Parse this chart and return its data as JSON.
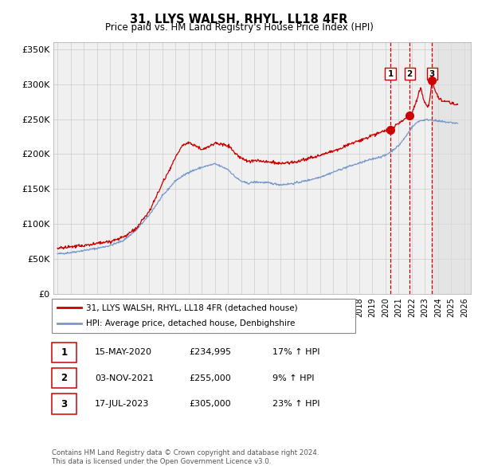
{
  "title": "31, LLYS WALSH, RHYL, LL18 4FR",
  "subtitle": "Price paid vs. HM Land Registry's House Price Index (HPI)",
  "legend_label_red": "31, LLYS WALSH, RHYL, LL18 4FR (detached house)",
  "legend_label_blue": "HPI: Average price, detached house, Denbighshire",
  "footer1": "Contains HM Land Registry data © Crown copyright and database right 2024.",
  "footer2": "This data is licensed under the Open Government Licence v3.0.",
  "transactions": [
    {
      "num": 1,
      "date": "15-MAY-2020",
      "price": "£234,995",
      "change": "17% ↑ HPI",
      "x_year": 2020.37
    },
    {
      "num": 2,
      "date": "03-NOV-2021",
      "price": "£255,000",
      "change": "9% ↑ HPI",
      "x_year": 2021.84
    },
    {
      "num": 3,
      "date": "17-JUL-2023",
      "price": "£305,000",
      "change": "23% ↑ HPI",
      "x_year": 2023.54
    }
  ],
  "transaction_values": [
    234995,
    255000,
    305000
  ],
  "red_color": "#cc0000",
  "blue_color": "#7799cc",
  "marker_color": "#cc0000",
  "vline_color": "#cc0000",
  "shade_color": "#dddddd",
  "grid_color": "#cccccc",
  "bg_color": "#ffffff",
  "plot_bg_color": "#f0f0f0",
  "ylim": [
    0,
    360000
  ],
  "yticks": [
    0,
    50000,
    100000,
    150000,
    200000,
    250000,
    300000,
    350000
  ],
  "xlim_start": 1994.7,
  "xlim_end": 2026.5,
  "xticks": [
    1995,
    1996,
    1997,
    1998,
    1999,
    2000,
    2001,
    2002,
    2003,
    2004,
    2005,
    2006,
    2007,
    2008,
    2009,
    2010,
    2011,
    2012,
    2013,
    2014,
    2015,
    2016,
    2017,
    2018,
    2019,
    2020,
    2021,
    2022,
    2023,
    2024,
    2025,
    2026
  ],
  "hpi_anchors": [
    [
      1995.0,
      57000
    ],
    [
      1996.0,
      59000
    ],
    [
      1997.0,
      62000
    ],
    [
      1998.0,
      65000
    ],
    [
      1999.0,
      69000
    ],
    [
      2000.0,
      76000
    ],
    [
      2001.0,
      91000
    ],
    [
      2002.0,
      113000
    ],
    [
      2003.0,
      140000
    ],
    [
      2004.0,
      162000
    ],
    [
      2005.0,
      174000
    ],
    [
      2006.0,
      181000
    ],
    [
      2007.0,
      186000
    ],
    [
      2008.0,
      178000
    ],
    [
      2008.5,
      168000
    ],
    [
      2009.0,
      161000
    ],
    [
      2009.5,
      158000
    ],
    [
      2010.0,
      160000
    ],
    [
      2011.0,
      159000
    ],
    [
      2012.0,
      156000
    ],
    [
      2013.0,
      158000
    ],
    [
      2014.0,
      162000
    ],
    [
      2015.0,
      167000
    ],
    [
      2016.0,
      174000
    ],
    [
      2017.0,
      181000
    ],
    [
      2018.0,
      187000
    ],
    [
      2019.0,
      193000
    ],
    [
      2020.0,
      198000
    ],
    [
      2020.5,
      205000
    ],
    [
      2021.0,
      212000
    ],
    [
      2021.5,
      224000
    ],
    [
      2022.0,
      238000
    ],
    [
      2022.5,
      247000
    ],
    [
      2023.0,
      249000
    ],
    [
      2023.5,
      249000
    ],
    [
      2024.0,
      247000
    ],
    [
      2024.5,
      246000
    ],
    [
      2025.5,
      244000
    ]
  ],
  "red_anchors": [
    [
      1995.0,
      65000
    ],
    [
      1996.0,
      67000
    ],
    [
      1997.0,
      69000
    ],
    [
      1998.0,
      72000
    ],
    [
      1999.0,
      75000
    ],
    [
      2000.0,
      81000
    ],
    [
      2001.0,
      93000
    ],
    [
      2002.0,
      118000
    ],
    [
      2003.0,
      158000
    ],
    [
      2004.0,
      195000
    ],
    [
      2004.5,
      212000
    ],
    [
      2005.0,
      217000
    ],
    [
      2005.5,
      212000
    ],
    [
      2006.0,
      207000
    ],
    [
      2006.5,
      210000
    ],
    [
      2007.0,
      216000
    ],
    [
      2008.0,
      212000
    ],
    [
      2008.5,
      202000
    ],
    [
      2009.0,
      194000
    ],
    [
      2009.5,
      190000
    ],
    [
      2010.0,
      191000
    ],
    [
      2011.0,
      189000
    ],
    [
      2012.0,
      186000
    ],
    [
      2013.0,
      188000
    ],
    [
      2014.0,
      193000
    ],
    [
      2015.0,
      198000
    ],
    [
      2016.0,
      204000
    ],
    [
      2017.0,
      212000
    ],
    [
      2018.0,
      219000
    ],
    [
      2019.0,
      227000
    ],
    [
      2020.0,
      234000
    ],
    [
      2020.37,
      234995
    ],
    [
      2021.0,
      244000
    ],
    [
      2021.84,
      255000
    ],
    [
      2022.0,
      258000
    ],
    [
      2022.25,
      270000
    ],
    [
      2022.5,
      286000
    ],
    [
      2022.7,
      295000
    ],
    [
      2022.9,
      278000
    ],
    [
      2023.1,
      270000
    ],
    [
      2023.3,
      268000
    ],
    [
      2023.54,
      305000
    ],
    [
      2023.75,
      292000
    ],
    [
      2024.0,
      282000
    ],
    [
      2024.3,
      277000
    ],
    [
      2024.7,
      275000
    ],
    [
      2025.0,
      273000
    ],
    [
      2025.5,
      270000
    ]
  ]
}
